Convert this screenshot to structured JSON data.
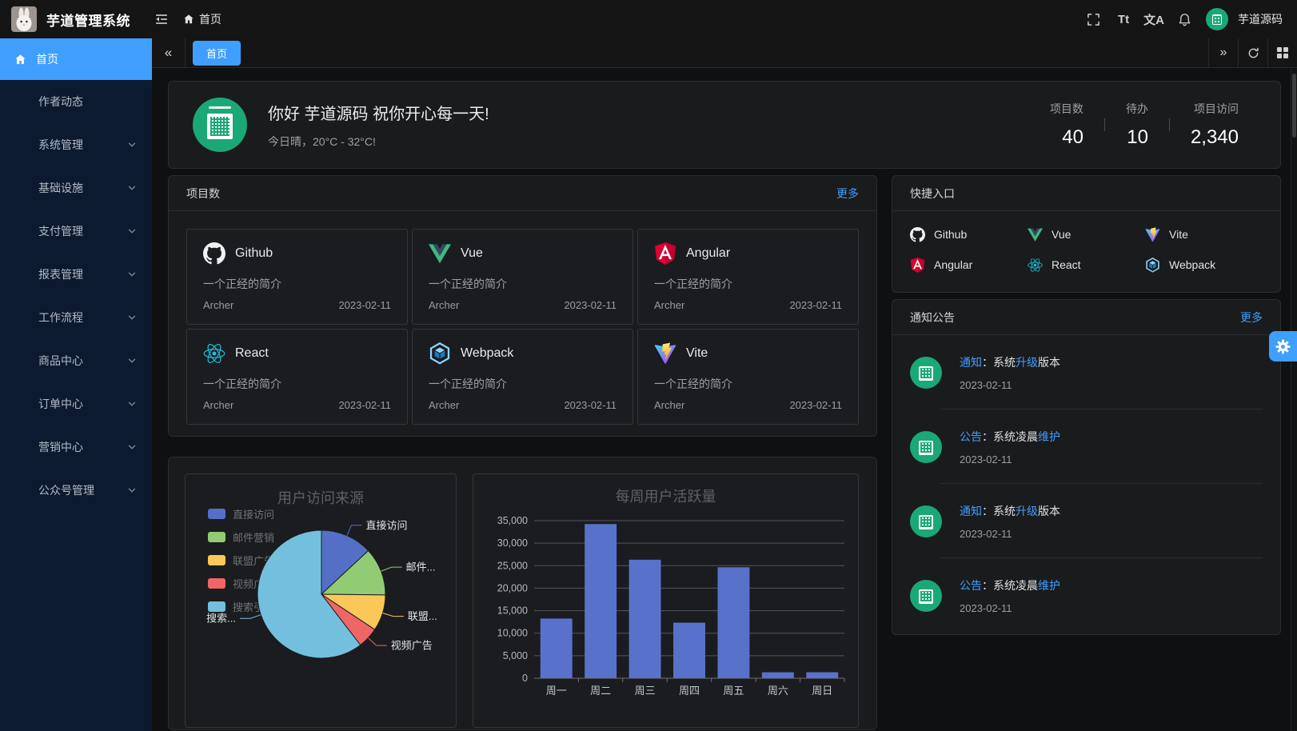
{
  "colors": {
    "accent": "#409eff",
    "sidebar_bg": "#0b1a2f",
    "card_bg": "#1a1b1d",
    "notice_avatar_green": "#1aa876"
  },
  "header": {
    "app_title": "芋道管理系统",
    "breadcrumb": "首页",
    "font_size_icon_label": "Tt",
    "locale_icon_label": "文A",
    "user_name": "芋道源码"
  },
  "sidebar": {
    "active_item": {
      "label": "首页"
    },
    "items": [
      {
        "label": "作者动态",
        "expandable": false
      },
      {
        "label": "系统管理",
        "expandable": true
      },
      {
        "label": "基础设施",
        "expandable": true
      },
      {
        "label": "支付管理",
        "expandable": true
      },
      {
        "label": "报表管理",
        "expandable": true
      },
      {
        "label": "工作流程",
        "expandable": true
      },
      {
        "label": "商品中心",
        "expandable": true
      },
      {
        "label": "订单中心",
        "expandable": true
      },
      {
        "label": "营销中心",
        "expandable": true
      },
      {
        "label": "公众号管理",
        "expandable": true
      }
    ]
  },
  "tabbar": {
    "active_tab": "首页"
  },
  "welcome": {
    "greeting": "你好 芋道源码 祝你开心每一天!",
    "weather": "今日晴，20°C - 32°C!",
    "stats": [
      {
        "label": "项目数",
        "value": "40"
      },
      {
        "label": "待办",
        "value": "10"
      },
      {
        "label": "项目访问",
        "value": "2,340"
      }
    ]
  },
  "projects": {
    "title": "项目数",
    "more_label": "更多",
    "items": [
      {
        "name": "Github",
        "icon": "github",
        "desc": "一个正经的简介",
        "author": "Archer",
        "date": "2023-02-11"
      },
      {
        "name": "Vue",
        "icon": "vue",
        "desc": "一个正经的简介",
        "author": "Archer",
        "date": "2023-02-11"
      },
      {
        "name": "Angular",
        "icon": "angular",
        "desc": "一个正经的简介",
        "author": "Archer",
        "date": "2023-02-11"
      },
      {
        "name": "React",
        "icon": "react",
        "desc": "一个正经的简介",
        "author": "Archer",
        "date": "2023-02-11"
      },
      {
        "name": "Webpack",
        "icon": "webpack",
        "desc": "一个正经的简介",
        "author": "Archer",
        "date": "2023-02-11"
      },
      {
        "name": "Vite",
        "icon": "vite",
        "desc": "一个正经的简介",
        "author": "Archer",
        "date": "2023-02-11"
      }
    ]
  },
  "shortcuts": {
    "title": "快捷入口",
    "items": [
      {
        "label": "Github",
        "icon": "github"
      },
      {
        "label": "Vue",
        "icon": "vue"
      },
      {
        "label": "Vite",
        "icon": "vite"
      },
      {
        "label": "Angular",
        "icon": "angular"
      },
      {
        "label": "React",
        "icon": "react"
      },
      {
        "label": "Webpack",
        "icon": "webpack"
      }
    ]
  },
  "notices": {
    "title": "通知公告",
    "more_label": "更多",
    "items": [
      {
        "segments": [
          {
            "text": "通知",
            "highlight": true
          },
          {
            "text": "：",
            "highlight": false
          },
          {
            "text": "系统",
            "highlight": false
          },
          {
            "text": "升级",
            "highlight": true
          },
          {
            "text": "版本",
            "highlight": false
          }
        ],
        "date": "2023-02-11"
      },
      {
        "segments": [
          {
            "text": "公告",
            "highlight": true
          },
          {
            "text": "：",
            "highlight": false
          },
          {
            "text": "系统凌晨",
            "highlight": false
          },
          {
            "text": "维护",
            "highlight": true
          }
        ],
        "date": "2023-02-11"
      },
      {
        "segments": [
          {
            "text": "通知",
            "highlight": true
          },
          {
            "text": "：",
            "highlight": false
          },
          {
            "text": "系统",
            "highlight": false
          },
          {
            "text": "升级",
            "highlight": true
          },
          {
            "text": "版本",
            "highlight": false
          }
        ],
        "date": "2023-02-11"
      },
      {
        "segments": [
          {
            "text": "公告",
            "highlight": true
          },
          {
            "text": "：",
            "highlight": false
          },
          {
            "text": "系统凌晨",
            "highlight": false
          },
          {
            "text": "维护",
            "highlight": true
          }
        ],
        "date": "2023-02-11"
      }
    ]
  },
  "chart_data": [
    {
      "type": "pie",
      "title": "用户访问来源",
      "legend_position": "left",
      "series": [
        {
          "name": "直接访问",
          "value": 335,
          "color": "#5470c6",
          "callout": "直接访问"
        },
        {
          "name": "邮件营销",
          "value": 310,
          "color": "#91cc75",
          "callout": "邮件..."
        },
        {
          "name": "联盟广告",
          "value": 234,
          "color": "#fac858",
          "callout": "联盟..."
        },
        {
          "name": "视频广告",
          "value": 135,
          "color": "#ee6666",
          "callout": "视频广告"
        },
        {
          "name": "搜索引擎",
          "value": 1548,
          "color": "#73c0de",
          "callout": "搜索..."
        }
      ]
    },
    {
      "type": "bar",
      "title": "每周用户活跃量",
      "categories": [
        "周一",
        "周二",
        "周三",
        "周四",
        "周五",
        "周六",
        "周日"
      ],
      "values": [
        13253,
        34235,
        26321,
        12340,
        24643,
        1322,
        1324
      ],
      "ylim": [
        0,
        35000
      ],
      "ytick_step": 5000,
      "bar_color": "#5872cb",
      "grid": true
    }
  ]
}
